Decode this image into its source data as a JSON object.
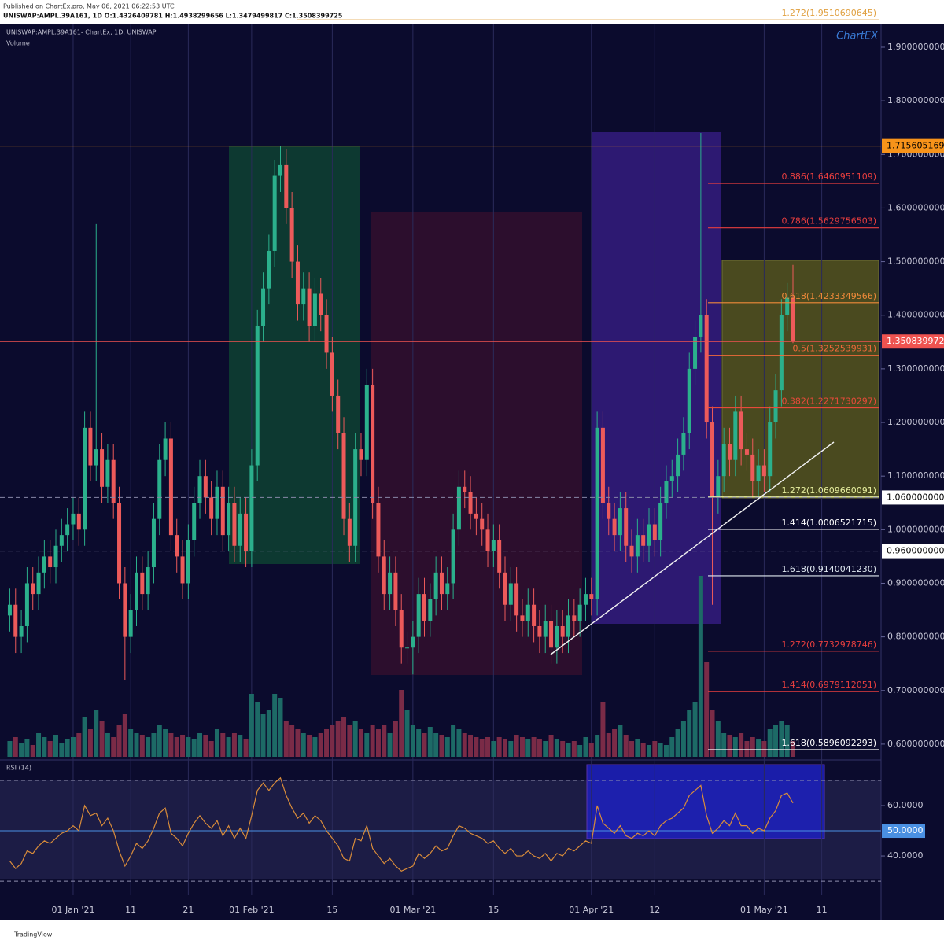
{
  "header": {
    "published": "Published on ChartEx.pro, May 06, 2021 06:22:53 UTC",
    "symbol_line": "UNISWAP:AMPL.39A161, 1D  O:1.4326409781 H:1.4938299656 L:1.3479499817 C:1.3508399725",
    "logo": "ChartEX",
    "footer": "TradingView"
  },
  "chart_data": [
    {
      "type": "candlestick",
      "title": "UNISWAP:AMPL.39A161- ChartEx, 1D, UNISWAP",
      "x": [
        -11,
        -10,
        -9,
        -8,
        -7,
        -6,
        -5,
        -4,
        -3,
        -2,
        -1,
        0,
        1,
        2,
        3,
        4,
        5,
        6,
        7,
        8,
        9,
        10,
        11,
        12,
        13,
        14,
        15,
        16,
        17,
        18,
        19,
        20,
        21,
        22,
        23,
        24,
        25,
        26,
        27,
        28,
        29,
        30,
        31,
        32,
        33,
        34,
        35,
        36,
        37,
        38,
        39,
        40,
        41,
        42,
        43,
        44,
        45,
        46,
        47,
        48,
        49,
        50,
        51,
        52,
        53,
        54,
        55,
        56,
        57,
        58,
        59,
        60,
        61,
        62,
        63,
        64,
        65,
        66,
        67,
        68,
        69,
        70,
        71,
        72,
        73,
        74,
        75,
        76,
        77,
        78,
        79,
        80,
        81,
        82,
        83,
        84,
        85,
        86,
        87,
        88,
        89,
        90,
        91,
        92,
        93,
        94,
        95,
        96,
        97,
        98,
        99,
        100,
        101,
        102,
        103,
        104,
        105,
        106,
        107,
        108,
        109,
        110,
        111,
        112,
        113,
        114,
        115,
        116,
        117,
        118,
        119,
        120,
        121,
        122,
        123,
        124,
        125
      ],
      "open": [
        0.84,
        0.86,
        0.8,
        0.82,
        0.9,
        0.88,
        0.92,
        0.95,
        0.93,
        0.97,
        0.99,
        1.01,
        1.03,
        1.0,
        1.19,
        1.12,
        1.15,
        1.08,
        1.13,
        1.05,
        0.9,
        0.8,
        0.85,
        0.92,
        0.88,
        0.93,
        1.02,
        1.13,
        1.17,
        0.99,
        0.95,
        0.9,
        0.98,
        1.05,
        1.1,
        1.06,
        1.02,
        1.08,
        0.99,
        1.05,
        0.97,
        1.03,
        0.96,
        1.12,
        1.38,
        1.45,
        1.52,
        1.66,
        1.68,
        1.6,
        1.5,
        1.42,
        1.45,
        1.38,
        1.44,
        1.4,
        1.33,
        1.25,
        1.18,
        1.02,
        0.97,
        1.15,
        1.13,
        1.27,
        1.05,
        0.95,
        0.88,
        0.92,
        0.85,
        0.78,
        0.78,
        0.8,
        0.88,
        0.83,
        0.87,
        0.92,
        0.88,
        0.9,
        1.0,
        1.08,
        1.07,
        1.03,
        1.02,
        1.0,
        0.96,
        0.98,
        0.92,
        0.86,
        0.9,
        0.84,
        0.83,
        0.86,
        0.82,
        0.8,
        0.83,
        0.78,
        0.82,
        0.8,
        0.84,
        0.83,
        0.86,
        0.88,
        0.87,
        1.19,
        1.05,
        1.02,
        0.99,
        1.04,
        0.97,
        0.95,
        0.99,
        0.97,
        1.01,
        0.98,
        1.05,
        1.09,
        1.1,
        1.14,
        1.18,
        1.3,
        1.36,
        1.4,
        1.2,
        1.06,
        1.1,
        1.16,
        1.13,
        1.22,
        1.15,
        1.14,
        1.09,
        1.12,
        1.1,
        1.2,
        1.26,
        1.4,
        1.4326
      ],
      "high": [
        0.89,
        0.89,
        0.85,
        0.93,
        0.93,
        0.95,
        0.98,
        0.98,
        1.0,
        1.02,
        1.04,
        1.06,
        1.06,
        1.22,
        1.22,
        1.57,
        1.18,
        1.16,
        1.16,
        1.08,
        0.93,
        0.88,
        0.95,
        0.95,
        0.96,
        1.05,
        1.16,
        1.2,
        1.2,
        1.02,
        0.98,
        1.01,
        1.08,
        1.13,
        1.13,
        1.09,
        1.11,
        1.11,
        1.08,
        1.08,
        1.06,
        1.06,
        1.15,
        1.41,
        1.48,
        1.55,
        1.69,
        1.7156,
        1.71,
        1.63,
        1.53,
        1.48,
        1.48,
        1.47,
        1.47,
        1.43,
        1.36,
        1.28,
        1.21,
        1.05,
        1.18,
        1.18,
        1.3,
        1.3,
        1.08,
        0.98,
        0.95,
        0.95,
        0.88,
        0.81,
        0.83,
        0.91,
        0.91,
        0.9,
        0.95,
        0.95,
        0.93,
        1.03,
        1.11,
        1.11,
        1.1,
        1.06,
        1.05,
        1.03,
        1.01,
        1.01,
        0.95,
        0.93,
        0.93,
        0.87,
        0.89,
        0.89,
        0.85,
        0.86,
        0.86,
        0.85,
        0.85,
        0.87,
        0.87,
        0.89,
        0.91,
        0.91,
        1.22,
        1.22,
        1.08,
        1.05,
        1.07,
        1.07,
        1.0,
        1.02,
        1.02,
        1.04,
        1.04,
        1.08,
        1.12,
        1.13,
        1.17,
        1.21,
        1.33,
        1.39,
        1.74,
        1.43,
        1.23,
        1.13,
        1.19,
        1.19,
        1.25,
        1.25,
        1.18,
        1.17,
        1.15,
        1.15,
        1.23,
        1.29,
        1.43,
        1.46,
        1.4938
      ],
      "low": [
        0.81,
        0.77,
        0.77,
        0.79,
        0.85,
        0.85,
        0.89,
        0.9,
        0.9,
        0.94,
        0.96,
        0.98,
        0.97,
        0.97,
        1.09,
        1.09,
        1.05,
        1.05,
        1.02,
        0.87,
        0.72,
        0.77,
        0.82,
        0.85,
        0.85,
        0.9,
        0.99,
        1.1,
        0.96,
        0.92,
        0.87,
        0.87,
        0.95,
        1.02,
        1.03,
        0.99,
        0.99,
        0.96,
        0.96,
        0.94,
        0.94,
        0.93,
        0.93,
        1.09,
        1.35,
        1.42,
        1.49,
        1.63,
        1.57,
        1.47,
        1.39,
        1.39,
        1.35,
        1.35,
        1.37,
        1.3,
        1.22,
        1.15,
        0.99,
        0.94,
        0.94,
        1.1,
        1.1,
        1.02,
        0.92,
        0.85,
        0.85,
        0.82,
        0.75,
        0.75,
        0.73,
        0.77,
        0.8,
        0.8,
        0.84,
        0.85,
        0.85,
        0.87,
        0.97,
        1.04,
        1.0,
        0.99,
        0.97,
        0.93,
        0.93,
        0.89,
        0.83,
        0.83,
        0.81,
        0.8,
        0.8,
        0.79,
        0.77,
        0.77,
        0.75,
        0.75,
        0.77,
        0.77,
        0.8,
        0.8,
        0.83,
        0.84,
        0.84,
        1.02,
        0.99,
        0.96,
        0.96,
        0.94,
        0.92,
        0.92,
        0.94,
        0.94,
        0.95,
        0.95,
        1.02,
        1.06,
        1.07,
        1.11,
        1.15,
        1.27,
        1.33,
        1.17,
        0.86,
        1.03,
        1.07,
        1.1,
        1.1,
        1.12,
        1.11,
        1.06,
        1.06,
        1.07,
        1.07,
        1.17,
        1.23,
        1.37,
        1.3479
      ],
      "close": [
        0.86,
        0.8,
        0.82,
        0.9,
        0.88,
        0.92,
        0.95,
        0.93,
        0.97,
        0.99,
        1.01,
        1.03,
        1.0,
        1.19,
        1.12,
        1.15,
        1.08,
        1.13,
        1.05,
        0.9,
        0.8,
        0.85,
        0.92,
        0.88,
        0.93,
        1.02,
        1.13,
        1.17,
        0.99,
        0.95,
        0.9,
        0.98,
        1.05,
        1.1,
        1.06,
        1.02,
        1.08,
        0.99,
        1.05,
        0.97,
        1.03,
        0.96,
        1.12,
        1.38,
        1.45,
        1.52,
        1.66,
        1.68,
        1.6,
        1.5,
        1.42,
        1.45,
        1.38,
        1.44,
        1.4,
        1.33,
        1.25,
        1.18,
        1.02,
        0.97,
        1.15,
        1.13,
        1.27,
        1.05,
        0.95,
        0.88,
        0.92,
        0.85,
        0.78,
        0.78,
        0.8,
        0.88,
        0.83,
        0.87,
        0.92,
        0.88,
        0.9,
        1.0,
        1.08,
        1.07,
        1.03,
        1.02,
        1.0,
        0.96,
        0.98,
        0.92,
        0.86,
        0.9,
        0.84,
        0.83,
        0.86,
        0.82,
        0.8,
        0.83,
        0.78,
        0.82,
        0.8,
        0.84,
        0.83,
        0.86,
        0.88,
        0.87,
        1.19,
        1.05,
        1.02,
        0.99,
        1.04,
        0.97,
        0.95,
        0.99,
        0.97,
        1.01,
        0.98,
        1.05,
        1.09,
        1.1,
        1.14,
        1.18,
        1.3,
        1.36,
        1.4,
        1.2,
        1.06,
        1.1,
        1.16,
        1.13,
        1.22,
        1.15,
        1.14,
        1.09,
        1.12,
        1.1,
        1.2,
        1.26,
        1.4,
        1.4326,
        1.3508
      ],
      "up_color": "#2bb08c",
      "down_color": "#ec5a5a",
      "xlim": [
        -12.7,
        140.3
      ],
      "xticks": [
        {
          "value": 0,
          "label": "01 Jan '21"
        },
        {
          "value": 10,
          "label": "11"
        },
        {
          "value": 20,
          "label": "21"
        },
        {
          "value": 31,
          "label": "01 Feb '21"
        },
        {
          "value": 45,
          "label": "15"
        },
        {
          "value": 59,
          "label": "01 Mar '21"
        },
        {
          "value": 73,
          "label": "15"
        },
        {
          "value": 90,
          "label": "01 Apr '21"
        },
        {
          "value": 101,
          "label": "12"
        },
        {
          "value": 120,
          "label": "01 May '21"
        },
        {
          "value": 130,
          "label": "11"
        }
      ],
      "ylim": [
        0.572,
        1.944
      ],
      "yticks": [
        {
          "value": 1.9,
          "label": "1.9000000000"
        },
        {
          "value": 1.8,
          "label": "1.8000000000"
        },
        {
          "value": 1.7,
          "label": "1.7000000000"
        },
        {
          "value": 1.6,
          "label": "1.6000000000"
        },
        {
          "value": 1.5,
          "label": "1.5000000000"
        },
        {
          "value": 1.4,
          "label": "1.4000000000"
        },
        {
          "value": 1.3,
          "label": "1.3000000000"
        },
        {
          "value": 1.2,
          "label": "1.2000000000"
        },
        {
          "value": 1.1,
          "label": "1.1000000000"
        },
        {
          "value": 1.0,
          "label": "1.0000000000"
        },
        {
          "value": 0.9,
          "label": "0.9000000000"
        },
        {
          "value": 0.8,
          "label": "0.8000000000"
        },
        {
          "value": 0.7,
          "label": "0.7000000000"
        },
        {
          "value": 0.6,
          "label": "0.6000000000"
        }
      ],
      "price_lines": [
        {
          "value": 1.7156051698,
          "label": "1.7156051698",
          "color": "#f7931a"
        },
        {
          "value": 1.3508399725,
          "label": "1.3508399725",
          "color": "#ef5350"
        },
        {
          "value": 1.06,
          "label": "1.0600000000",
          "color": "#ffffff"
        },
        {
          "value": 0.96,
          "label": "0.9600000000",
          "color": "#ffffff"
        }
      ],
      "fib_levels": [
        {
          "value": 1.9510690645,
          "label": "1.272(1.9510690645)",
          "color": "#e0a040"
        },
        {
          "value": 1.6460951109,
          "label": "0.886(1.6460951109)",
          "color": "#e83e3e"
        },
        {
          "value": 1.5629756503,
          "label": "0.786(1.5629756503)",
          "color": "#e83e3e"
        },
        {
          "value": 1.4233349566,
          "label": "0.618(1.4233349566)",
          "color": "#f08a3a"
        },
        {
          "value": 1.3252539931,
          "label": "0.5(1.3252539931)",
          "color": "#f06a3a"
        },
        {
          "value": 1.2271730297,
          "label": "0.382(1.2271730297)",
          "color": "#e84a3a"
        },
        {
          "value": 1.0609660091,
          "label": "1.272(1.0609660091)",
          "color": "#e8f0a0"
        },
        {
          "value": 1.0006521715,
          "label": "1.414(1.0006521715)",
          "color": "#ffffff"
        },
        {
          "value": 0.914004123,
          "label": "1.618(0.9140041230)",
          "color": "#dfe8f0"
        },
        {
          "value": 0.7732978746,
          "label": "1.272(0.7732978746)",
          "color": "#e83e3e"
        },
        {
          "value": 0.6979112051,
          "label": "1.414(0.6979112051)",
          "color": "#e83e3e"
        },
        {
          "value": 0.5896092293,
          "label": "1.618(0.5896092293)",
          "color": "#ffffff"
        }
      ],
      "grid": true,
      "volume": {
        "title": "Volume",
        "up_color": "#1d6a66",
        "down_color": "#7a2b47",
        "values": [
          20,
          25,
          18,
          22,
          15,
          30,
          25,
          20,
          28,
          18,
          22,
          25,
          30,
          50,
          35,
          60,
          45,
          30,
          25,
          40,
          55,
          35,
          30,
          28,
          25,
          30,
          40,
          35,
          30,
          25,
          28,
          25,
          22,
          30,
          28,
          20,
          35,
          30,
          25,
          30,
          28,
          22,
          80,
          70,
          55,
          60,
          80,
          75,
          45,
          40,
          35,
          30,
          28,
          25,
          30,
          35,
          40,
          45,
          50,
          40,
          45,
          35,
          30,
          40,
          35,
          40,
          30,
          45,
          85,
          60,
          40,
          35,
          30,
          38,
          30,
          28,
          25,
          40,
          35,
          30,
          28,
          25,
          22,
          25,
          20,
          25,
          22,
          20,
          28,
          25,
          22,
          25,
          22,
          20,
          28,
          22,
          20,
          18,
          20,
          15,
          25,
          18,
          28,
          70,
          30,
          35,
          40,
          28,
          20,
          22,
          18,
          15,
          20,
          18,
          15,
          25,
          35,
          45,
          60,
          70,
          230,
          120,
          60,
          45,
          30,
          28,
          25,
          30,
          20,
          25,
          22,
          20,
          35,
          40,
          45,
          40,
          20
        ]
      }
    },
    {
      "type": "line",
      "title": "RSI (14)",
      "color": "#d98c3a",
      "x": [
        -11,
        -10,
        -9,
        -8,
        -7,
        -6,
        -5,
        -4,
        -3,
        -2,
        -1,
        0,
        1,
        2,
        3,
        4,
        5,
        6,
        7,
        8,
        9,
        10,
        11,
        12,
        13,
        14,
        15,
        16,
        17,
        18,
        19,
        20,
        21,
        22,
        23,
        24,
        25,
        26,
        27,
        28,
        29,
        30,
        31,
        32,
        33,
        34,
        35,
        36,
        37,
        38,
        39,
        40,
        41,
        42,
        43,
        44,
        45,
        46,
        47,
        48,
        49,
        50,
        51,
        52,
        53,
        54,
        55,
        56,
        57,
        58,
        59,
        60,
        61,
        62,
        63,
        64,
        65,
        66,
        67,
        68,
        69,
        70,
        71,
        72,
        73,
        74,
        75,
        76,
        77,
        78,
        79,
        80,
        81,
        82,
        83,
        84,
        85,
        86,
        87,
        88,
        89,
        90,
        91,
        92,
        93,
        94,
        95,
        96,
        97,
        98,
        99,
        100,
        101,
        102,
        103,
        104,
        105,
        106,
        107,
        108,
        109,
        110,
        111,
        112,
        113,
        114,
        115,
        116,
        117,
        118,
        119,
        120,
        121,
        122,
        123,
        124,
        125
      ],
      "values": [
        38,
        35,
        37,
        42,
        41,
        44,
        46,
        45,
        47,
        49,
        50,
        52,
        50,
        60,
        56,
        57,
        52,
        55,
        50,
        42,
        36,
        40,
        45,
        43,
        46,
        51,
        57,
        59,
        49,
        47,
        44,
        49,
        53,
        56,
        53,
        51,
        54,
        48,
        52,
        47,
        51,
        47,
        56,
        66,
        69,
        66,
        69,
        71,
        64,
        59,
        55,
        57,
        53,
        56,
        54,
        50,
        47,
        44,
        39,
        38,
        47,
        46,
        52,
        43,
        40,
        37,
        39,
        36,
        34,
        35,
        36,
        41,
        39,
        41,
        44,
        42,
        43,
        48,
        52,
        51,
        49,
        48,
        47,
        45,
        46,
        43,
        41,
        43,
        40,
        40,
        42,
        40,
        39,
        41,
        38,
        41,
        40,
        43,
        42,
        44,
        46,
        45,
        60,
        53,
        51,
        49,
        52,
        48,
        47,
        49,
        48,
        50,
        48,
        52,
        54,
        55,
        57,
        59,
        64,
        66,
        68,
        56,
        49,
        51,
        54,
        52,
        57,
        52,
        52,
        49,
        51,
        50,
        55,
        58,
        64,
        65,
        61
      ],
      "xlim": [
        -12.7,
        140.3
      ],
      "ylim": [
        24.4,
        77.5
      ],
      "yticks": [
        {
          "value": 60,
          "label": "60.0000"
        },
        {
          "value": 50,
          "label": "50.0000"
        },
        {
          "value": 40,
          "label": "40.0000"
        }
      ],
      "bands": [
        70,
        30
      ],
      "midline": {
        "value": 50,
        "color": "#4a90e2"
      }
    }
  ]
}
